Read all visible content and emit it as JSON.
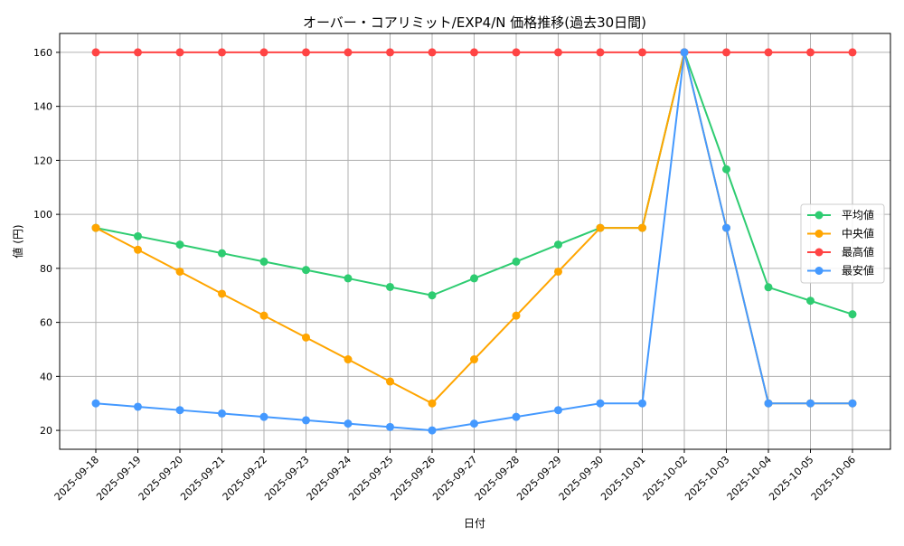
{
  "chart_data": {
    "type": "line",
    "title": "オーバー・コアリミット/EXP4/N 価格推移(過去30日間)",
    "xlabel": "日付",
    "ylabel": "値 (円)",
    "ylim": [
      13,
      167
    ],
    "yticks": [
      20,
      40,
      60,
      80,
      100,
      120,
      140,
      160
    ],
    "grid": true,
    "legend_position": "center-right",
    "categories": [
      "2025-09-18",
      "2025-09-19",
      "2025-09-20",
      "2025-09-21",
      "2025-09-22",
      "2025-09-23",
      "2025-09-24",
      "2025-09-25",
      "2025-09-26",
      "2025-09-27",
      "2025-09-28",
      "2025-09-29",
      "2025-09-30",
      "2025-10-01",
      "2025-10-02",
      "2025-10-03",
      "2025-10-04",
      "2025-10-05",
      "2025-10-06"
    ],
    "series": [
      {
        "name": "平均値",
        "color": "#2ecc71",
        "values": [
          95,
          91.9,
          88.8,
          85.6,
          82.5,
          79.4,
          76.3,
          73.1,
          70,
          76.3,
          82.5,
          88.8,
          95,
          95,
          160,
          116.7,
          73,
          68,
          63
        ]
      },
      {
        "name": "中央値",
        "color": "#ffa500",
        "values": [
          95,
          86.9,
          78.8,
          70.6,
          62.5,
          54.4,
          46.3,
          38.1,
          30,
          46.3,
          62.5,
          78.8,
          95,
          95,
          160,
          95,
          30,
          30,
          30
        ]
      },
      {
        "name": "最高値",
        "color": "#ff4444",
        "values": [
          160,
          160,
          160,
          160,
          160,
          160,
          160,
          160,
          160,
          160,
          160,
          160,
          160,
          160,
          160,
          160,
          160,
          160,
          160
        ]
      },
      {
        "name": "最安値",
        "color": "#4499ff",
        "values": [
          30,
          28.75,
          27.5,
          26.25,
          25,
          23.75,
          22.5,
          21.25,
          20,
          22.5,
          25,
          27.5,
          30,
          30,
          160,
          95,
          30,
          30,
          30
        ]
      }
    ]
  }
}
